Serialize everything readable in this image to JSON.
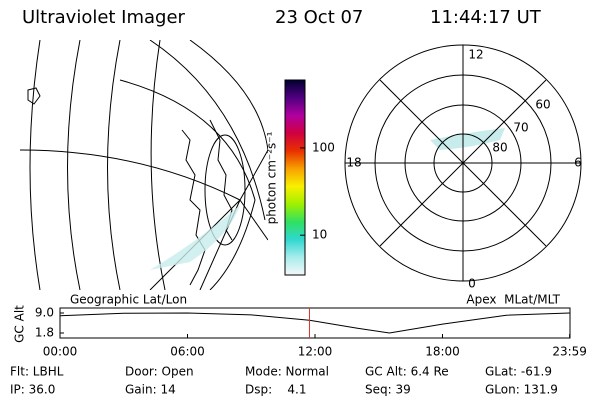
{
  "header": {
    "instrument": "Ultraviolet Imager",
    "date": "23 Oct 07",
    "time": "11:44:17 UT"
  },
  "map": {
    "label": "Geographic Lat/Lon"
  },
  "colorbar": {
    "label": "photon cm⁻²s⁻¹",
    "log": true,
    "lim": [
      3.5,
      600
    ],
    "ticks": [
      10,
      100
    ],
    "colors": [
      "#f4f8f8",
      "#a8ecec",
      "#30d8d0",
      "#30e060",
      "#a0f000",
      "#f8f000",
      "#f8a000",
      "#e83000",
      "#d00040",
      "#b000a0",
      "#500080",
      "#000030"
    ]
  },
  "polar": {
    "label": "Apex  MLat/MLT",
    "mlt_labels": [
      "12",
      "18",
      "6",
      "0"
    ],
    "lat_labels": [
      "60",
      "70",
      "80"
    ]
  },
  "timeline": {
    "ylabel": "GC Alt",
    "ylim": [
      0,
      10.8
    ],
    "yticks": [
      {
        "value": 9,
        "label": "9.0"
      },
      1.8
    ],
    "xlim": [
      0,
      24
    ],
    "xticks": [
      {
        "value": 0,
        "label": "00:00"
      },
      {
        "value": 6,
        "label": "06:00"
      },
      {
        "value": 12,
        "label": "12:00"
      },
      {
        "value": 18,
        "label": "18:00"
      },
      {
        "value": 23.983,
        "label": "23:59"
      }
    ],
    "x": [
      0,
      3,
      6,
      9,
      11.74,
      14,
      15.5,
      18,
      21,
      23.983
    ],
    "values": [
      8.0,
      8.9,
      9.0,
      8.3,
      6.4,
      3.5,
      1.8,
      5.0,
      8.2,
      9.0
    ],
    "color": "#000000",
    "marker_hour": 11.74,
    "marker_color": "#e03030"
  },
  "footer": [
    [
      "Flt: LBHL",
      "Door: Open",
      "Mode: Normal",
      "GC Alt: 6.4 Re",
      "GLat: -61.9"
    ],
    [
      "IP: 36.0",
      "Gain: 14",
      "Dsp:    4.1",
      "Seq: 39",
      "GLon: 131.9"
    ]
  ]
}
